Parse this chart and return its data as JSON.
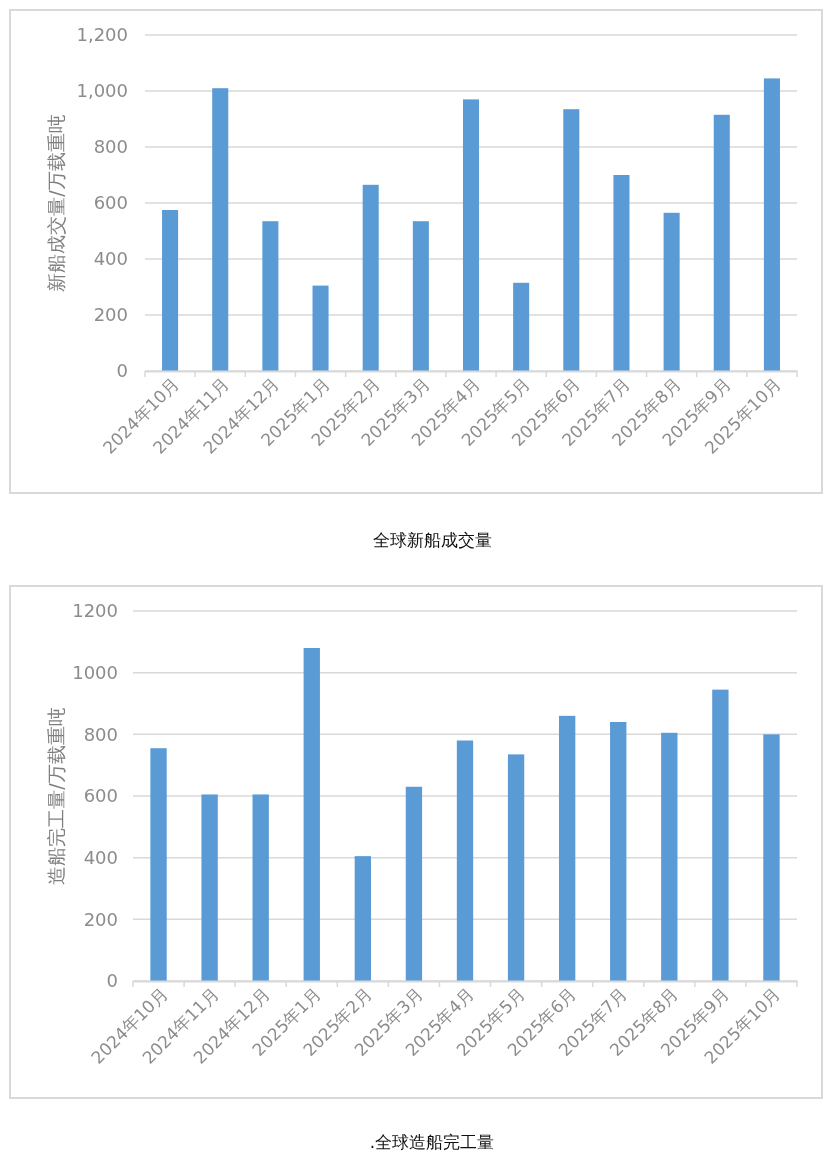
{
  "chart_data": [
    {
      "type": "bar",
      "title": "全球新船成交量",
      "ylabel": "新船成交量/万载重吨",
      "categories": [
        "2024年10月",
        "2024年11月",
        "2024年12月",
        "2025年1月",
        "2025年2月",
        "2025年3月",
        "2025年4月",
        "2025年5月",
        "2025年6月",
        "2025年7月",
        "2025年8月",
        "2025年9月",
        "2025年10月"
      ],
      "values": [
        575,
        1010,
        535,
        305,
        665,
        535,
        970,
        315,
        935,
        700,
        565,
        915,
        1045
      ],
      "color": "#5b9bd5",
      "ylim": [
        0,
        1200
      ],
      "yticks": [
        0,
        200,
        400,
        600,
        800,
        {
          "value": 1000,
          "label": "1,000"
        },
        {
          "value": 1200,
          "label": "1,200"
        }
      ],
      "grid": "y",
      "legend": false
    },
    {
      "type": "bar",
      "title": ".全球造船完工量",
      "ylabel": "造船完工量/万载重吨",
      "categories": [
        "2024年10月",
        "2024年11月",
        "2024年12月",
        "2025年1月",
        "2025年2月",
        "2025年3月",
        "2025年4月",
        "2025年5月",
        "2025年6月",
        "2025年7月",
        "2025年8月",
        "2025年9月",
        "2025年10月"
      ],
      "values": [
        755,
        605,
        605,
        1080,
        405,
        630,
        780,
        735,
        860,
        840,
        805,
        945,
        800
      ],
      "color": "#5b9bd5",
      "ylim": [
        0,
        1200
      ],
      "yticks": [
        0,
        200,
        400,
        600,
        800,
        1000,
        1200
      ],
      "grid": "y",
      "legend": false
    }
  ]
}
